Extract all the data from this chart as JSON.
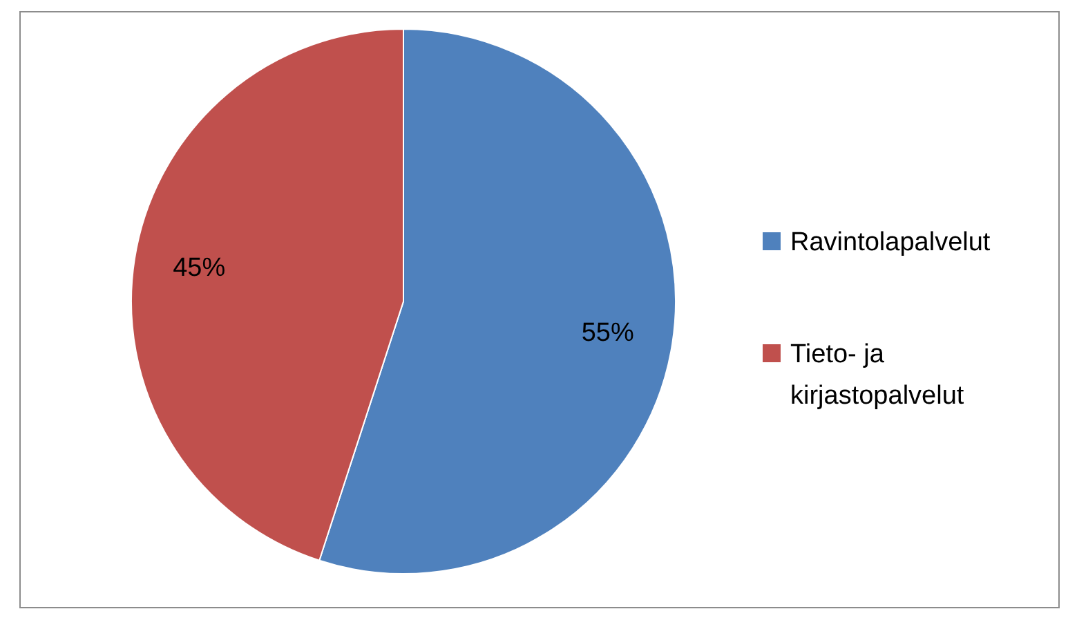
{
  "chart_data": {
    "type": "pie",
    "categories": [
      "Ravintolapalvelut",
      "Tieto- ja kirjastopalvelut"
    ],
    "values": [
      55,
      45
    ],
    "value_labels": [
      "55%",
      "45%"
    ],
    "colors": [
      "#4f81bd",
      "#c0504d"
    ],
    "legend": "right"
  }
}
